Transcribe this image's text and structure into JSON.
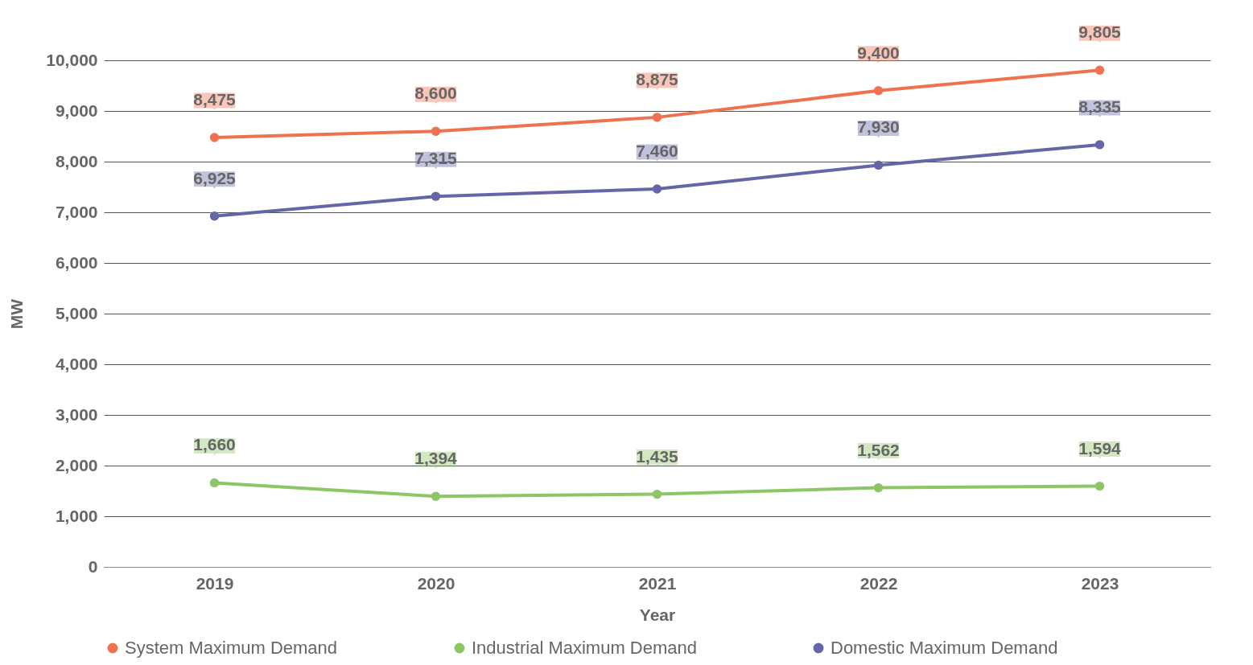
{
  "chart_data": {
    "type": "line",
    "xlabel": "Year",
    "ylabel": "MW",
    "categories": [
      "2019",
      "2020",
      "2021",
      "2022",
      "2023"
    ],
    "series": [
      {
        "name": "System Maximum Demand",
        "color": "#f0714f",
        "values": [
          8475,
          8600,
          8875,
          9400,
          9805
        ],
        "value_labels": [
          "8,475",
          "8,600",
          "8,875",
          "9,400",
          "9,805"
        ]
      },
      {
        "name": "Industrial Maximum Demand",
        "color": "#8cc665",
        "values": [
          1660,
          1394,
          1435,
          1562,
          1594
        ],
        "value_labels": [
          "1,660",
          "1,394",
          "1,435",
          "1,562",
          "1,594"
        ]
      },
      {
        "name": "Domestic Maximum Demand",
        "color": "#6466a8",
        "values": [
          6925,
          7315,
          7460,
          7930,
          8335
        ],
        "value_labels": [
          "6,925",
          "7,315",
          "7,460",
          "7,930",
          "8,335"
        ]
      }
    ],
    "ylim": [
      0,
      10000
    ],
    "yticks": [
      0,
      {
        "value": 1000,
        "label": "1,000"
      },
      {
        "value": 2000,
        "label": "2,000"
      },
      {
        "value": 3000,
        "label": "3,000"
      },
      {
        "value": 4000,
        "label": "4,000"
      },
      {
        "value": 5000,
        "label": "5,000"
      },
      {
        "value": 6000,
        "label": "6,000"
      },
      {
        "value": 7000,
        "label": "7,000"
      },
      {
        "value": 8000,
        "label": "8,000"
      },
      {
        "value": 9000,
        "label": "9,000"
      },
      {
        "value": 10000,
        "label": "10,000"
      }
    ],
    "grid": "y",
    "legend": "bottom",
    "marker": "circle",
    "line_style": "solid"
  }
}
